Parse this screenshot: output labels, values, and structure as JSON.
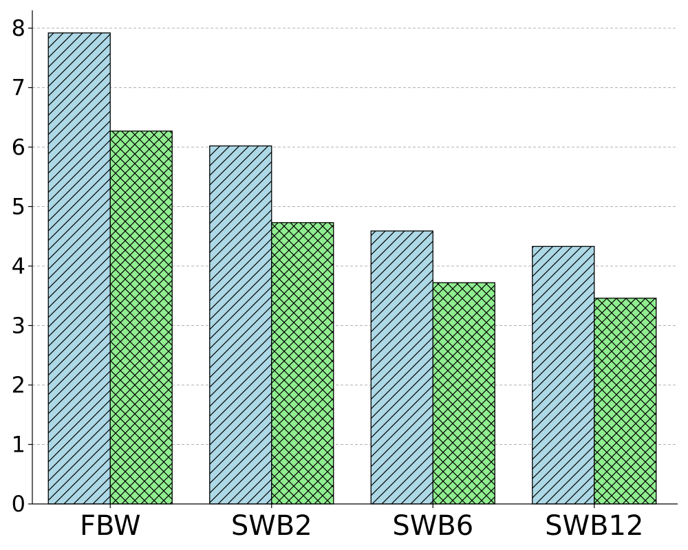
{
  "chart_data": {
    "type": "bar",
    "title": "",
    "xlabel": "",
    "ylabel": "",
    "categories": [
      "FBW",
      "SWB2",
      "SWB6",
      "SWB12"
    ],
    "series": [
      {
        "values": [
          7.92,
          6.02,
          4.59,
          4.33
        ],
        "color": "#add8e6",
        "hatch": "diagonal"
      },
      {
        "values": [
          6.27,
          4.73,
          3.72,
          3.46
        ],
        "color": "#90ee90",
        "hatch": "crosshatch"
      }
    ],
    "ylim": [
      0,
      8.3
    ],
    "yticks": [
      "0",
      "1",
      "2",
      "3",
      "4",
      "5",
      "6",
      "7",
      "8"
    ],
    "grid": "y-dashed",
    "legend": "none"
  }
}
